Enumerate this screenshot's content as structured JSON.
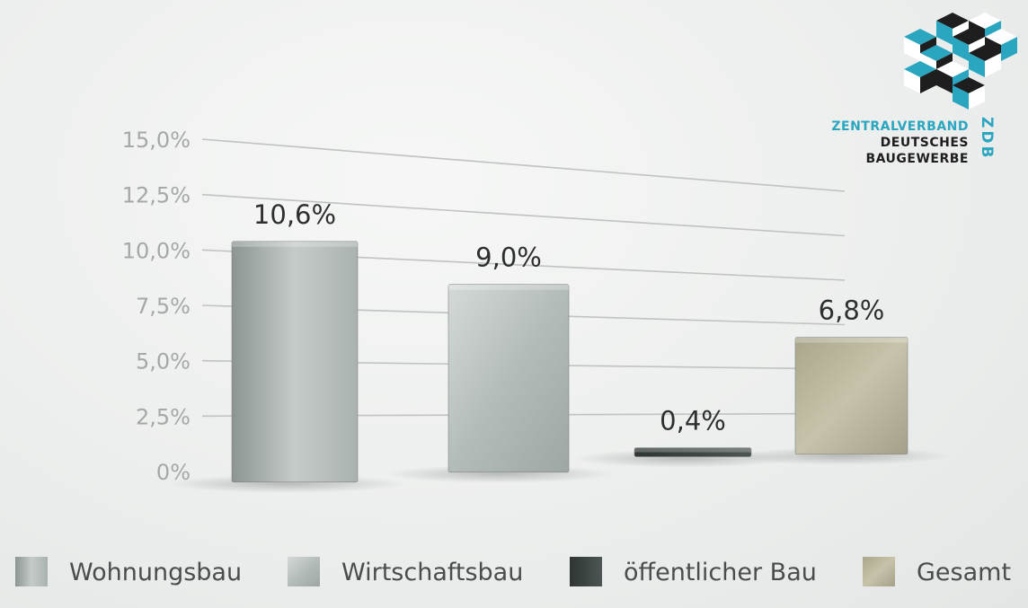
{
  "logo": {
    "line1": "ZENTRALVERBAND",
    "line2": "DEUTSCHES",
    "line3": "BAUGEWERBE",
    "abbr": "ZDB",
    "colors": {
      "accent": "#2aa6c0",
      "dark": "#1e1e1e"
    }
  },
  "chart_data": {
    "type": "bar",
    "categories": [
      "Wohnungsbau",
      "Wirtschaftsbau",
      "öffentlicher Bau",
      "Gesamt"
    ],
    "values": [
      10.6,
      9.0,
      0.4,
      6.8
    ],
    "value_labels": [
      "10,6%",
      "9,0%",
      "0,4%",
      "6,8%"
    ],
    "y_ticks": [
      "0%",
      "2,5%",
      "5,0%",
      "7,5%",
      "10,0%",
      "12,5%",
      "15,0%"
    ],
    "y_tick_values": [
      0,
      2.5,
      5.0,
      7.5,
      10.0,
      12.5,
      15.0
    ],
    "ylim": [
      0,
      15
    ],
    "grid": true,
    "legend_position": "bottom",
    "series_colors": [
      "#b9c0bd",
      "#c3cac7",
      "#3f4846",
      "#b8b59c"
    ]
  }
}
